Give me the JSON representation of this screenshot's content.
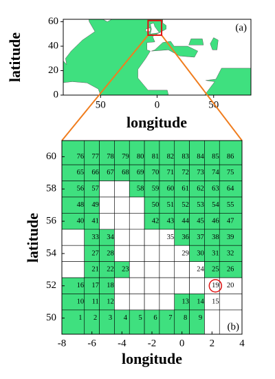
{
  "panel_a": {
    "label": "(a)",
    "x_label": "longitude",
    "y_label": "latitude",
    "xlim": [
      -83,
      83
    ],
    "ylim": [
      0,
      62
    ],
    "xticks": [
      {
        "value": -50,
        "label": "50"
      },
      0,
      {
        "value": 50,
        "label": "50"
      }
    ],
    "yticks": [
      0,
      20,
      40,
      60
    ],
    "sea_color": "#3fe07f"
  },
  "panel_b": {
    "label": "(b)",
    "x_label": "longitude",
    "y_label": "latitude",
    "xlim": [
      -8,
      4
    ],
    "ylim": [
      49,
      61
    ],
    "xticks": [
      -8,
      -6,
      -4,
      -2,
      0,
      2,
      4
    ],
    "yticks": [
      50,
      52,
      54,
      56,
      58,
      60
    ],
    "sea_color": "#3fe07f",
    "cell_lon": [
      -7,
      -6,
      -5,
      -4,
      -3,
      -2,
      -1,
      0,
      1,
      2,
      3
    ],
    "cell_lat": [
      60,
      59,
      58,
      57,
      56,
      55,
      54,
      53,
      52,
      51,
      50
    ],
    "rows": [
      [
        {
          "label": 76,
          "green": true
        },
        {
          "label": 77,
          "green": true
        },
        {
          "label": 78,
          "green": true
        },
        {
          "label": 79,
          "green": true
        },
        {
          "label": 80,
          "green": true
        },
        {
          "label": 81,
          "green": true
        },
        {
          "label": 82,
          "green": true
        },
        {
          "label": 83,
          "green": true
        },
        {
          "label": 84,
          "green": true
        },
        {
          "label": 85,
          "green": true
        },
        {
          "label": 86,
          "green": true
        }
      ],
      [
        {
          "label": 65,
          "green": true
        },
        {
          "label": 66,
          "green": true
        },
        {
          "label": 67,
          "green": true
        },
        {
          "label": 68,
          "green": true
        },
        {
          "label": 69,
          "green": true
        },
        {
          "label": 70,
          "green": true
        },
        {
          "label": 71,
          "green": true
        },
        {
          "label": 72,
          "green": true
        },
        {
          "label": 73,
          "green": true
        },
        {
          "label": 74,
          "green": true
        },
        {
          "label": 75,
          "green": true
        }
      ],
      [
        {
          "label": 56,
          "green": true
        },
        {
          "label": 57,
          "green": true
        },
        {
          "green": false
        },
        {
          "green": false
        },
        {
          "label": 58,
          "green": true
        },
        {
          "label": 59,
          "green": true
        },
        {
          "label": 60,
          "green": true
        },
        {
          "label": 61,
          "green": true
        },
        {
          "label": 62,
          "green": true
        },
        {
          "label": 63,
          "green": true
        },
        {
          "label": 64,
          "green": true
        }
      ],
      [
        {
          "label": 48,
          "green": true
        },
        {
          "label": 49,
          "green": true
        },
        {
          "green": false
        },
        {
          "green": false
        },
        {
          "green": false
        },
        {
          "label": 50,
          "green": true
        },
        {
          "label": 51,
          "green": true
        },
        {
          "label": 52,
          "green": true
        },
        {
          "label": 53,
          "green": true
        },
        {
          "label": 54,
          "green": true
        },
        {
          "label": 55,
          "green": true
        }
      ],
      [
        {
          "label": 40,
          "green": true
        },
        {
          "label": 41,
          "green": true
        },
        {
          "green": false
        },
        {
          "green": false
        },
        {
          "green": false
        },
        {
          "label": 42,
          "green": true
        },
        {
          "label": 43,
          "green": true
        },
        {
          "label": 44,
          "green": true
        },
        {
          "label": 45,
          "green": true
        },
        {
          "label": 46,
          "green": true
        },
        {
          "label": 47,
          "green": true
        }
      ],
      [
        {
          "green": false
        },
        {
          "label": 33,
          "green": true
        },
        {
          "label": 34,
          "green": true
        },
        {
          "green": false
        },
        {
          "green": false
        },
        {
          "green": false
        },
        {
          "label": 35,
          "green": false
        },
        {
          "label": 36,
          "green": true
        },
        {
          "label": 37,
          "green": true
        },
        {
          "label": 38,
          "green": true
        },
        {
          "label": 39,
          "green": true
        }
      ],
      [
        {
          "green": false
        },
        {
          "label": 27,
          "green": true
        },
        {
          "label": 28,
          "green": true
        },
        {
          "green": false
        },
        {
          "green": false
        },
        {
          "green": false
        },
        {
          "green": false
        },
        {
          "label": 29,
          "green": false
        },
        {
          "label": 30,
          "green": true
        },
        {
          "label": 31,
          "green": true
        },
        {
          "label": 32,
          "green": true
        }
      ],
      [
        {
          "green": false
        },
        {
          "label": 21,
          "green": true
        },
        {
          "label": 22,
          "green": true
        },
        {
          "label": 23,
          "green": true
        },
        {
          "green": false
        },
        {
          "green": false
        },
        {
          "green": false
        },
        {
          "green": false
        },
        {
          "label": 24,
          "green": false
        },
        {
          "label": 25,
          "green": true
        },
        {
          "label": 26,
          "green": true
        }
      ],
      [
        {
          "label": 16,
          "green": true
        },
        {
          "label": 17,
          "green": true
        },
        {
          "label": 18,
          "green": true
        },
        {
          "green": false
        },
        {
          "green": false
        },
        {
          "green": false
        },
        {
          "green": false
        },
        {
          "green": false
        },
        {
          "green": false
        },
        {
          "label": 19,
          "green": false,
          "circled": true
        },
        {
          "label": 20,
          "green": false
        }
      ],
      [
        {
          "label": 10,
          "green": true
        },
        {
          "label": 11,
          "green": true
        },
        {
          "label": 12,
          "green": true
        },
        {
          "green": false
        },
        {
          "green": false
        },
        {
          "green": false
        },
        {
          "green": false
        },
        {
          "label": 13,
          "green": true
        },
        {
          "label": 14,
          "green": true
        },
        {
          "label": 15,
          "green": false
        },
        {
          "green": false
        }
      ],
      [
        {
          "label": 1,
          "green": true
        },
        {
          "label": 2,
          "green": true
        },
        {
          "label": 3,
          "green": true
        },
        {
          "label": 4,
          "green": true
        },
        {
          "label": 5,
          "green": true
        },
        {
          "label": 6,
          "green": true
        },
        {
          "label": 7,
          "green": true
        },
        {
          "label": 8,
          "green": true
        },
        {
          "label": 9,
          "green": true
        },
        {
          "green": false
        },
        {
          "green": false
        }
      ]
    ]
  }
}
